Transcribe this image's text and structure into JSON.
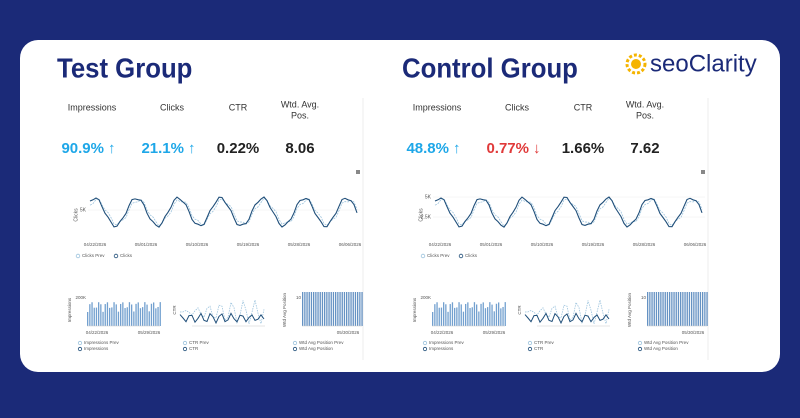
{
  "brand": "seoClarity",
  "groups": [
    {
      "title": "Test Group",
      "metrics": [
        {
          "label": [
            "Impressions"
          ],
          "value": "90.9%",
          "arrow": "↑",
          "color": "#1ea7e8"
        },
        {
          "label": [
            "Clicks"
          ],
          "value": "21.1%",
          "arrow": "↑",
          "color": "#1ea7e8"
        },
        {
          "label": [
            "CTR"
          ],
          "value": "0.22%",
          "color": "#222222"
        },
        {
          "label": [
            "Wtd. Avg.",
            "Pos."
          ],
          "value": "8.06",
          "color": "#222222"
        }
      ],
      "main_chart": {
        "y_label": "Clicks",
        "yticks": [
          "5K"
        ],
        "dates": [
          "04/22/2026",
          "05/01/2026",
          "05/10/2026",
          "05/19/2026",
          "05/28/2026",
          "06/06/2026"
        ],
        "legend": [
          "Clicks Prev",
          "Clicks"
        ]
      },
      "small_charts": [
        {
          "y_label": "Impressions",
          "yticks": [
            "200K"
          ],
          "dates": [
            "04/22/2026",
            "05/29/2026"
          ],
          "legend": [
            "Impressions Prev",
            "Impressions"
          ]
        },
        {
          "y_label": "CTR",
          "yticks": [],
          "dates": [],
          "legend": [
            "CTR Prev",
            "CTR"
          ]
        },
        {
          "y_label": "Wtd Avg Position",
          "yticks": [
            "10"
          ],
          "dates": [
            "05/30/2026"
          ],
          "legend": [
            "Wtd Avg Position Prev",
            "Wtd Avg Position"
          ]
        }
      ]
    },
    {
      "title": "Control Group",
      "metrics": [
        {
          "label": [
            "Impressions"
          ],
          "value": "48.8%",
          "arrow": "↑",
          "color": "#1ea7e8"
        },
        {
          "label": [
            "Clicks"
          ],
          "value": "0.77%",
          "arrow": "↓",
          "color": "#e03a3a"
        },
        {
          "label": [
            "CTR"
          ],
          "value": "1.66%",
          "color": "#222222"
        },
        {
          "label": [
            "Wtd. Avg.",
            "Pos."
          ],
          "value": "7.62",
          "color": "#222222"
        }
      ],
      "main_chart": {
        "y_label": "Clicks",
        "yticks": [
          "5K",
          "2.5K"
        ],
        "dates": [
          "04/22/2026",
          "05/01/2026",
          "05/10/2026",
          "05/19/2026",
          "05/28/2026",
          "06/06/2026"
        ],
        "legend": [
          "Clicks Prev",
          "Clicks"
        ]
      },
      "small_charts": [
        {
          "y_label": "Impressions",
          "yticks": [
            "200K"
          ],
          "dates": [
            "04/22/2026",
            "05/29/2026"
          ],
          "legend": [
            "Impressions Prev",
            "Impressions"
          ]
        },
        {
          "y_label": "CTR",
          "yticks": [],
          "dates": [],
          "legend": [
            "CTR Prev",
            "CTR"
          ]
        },
        {
          "y_label": "Wtd Avg Position",
          "yticks": [
            "10"
          ],
          "dates": [
            "05/30/2026"
          ],
          "legend": [
            "Wtd Avg Position Prev",
            "Wtd Avg Position"
          ]
        }
      ]
    }
  ]
}
